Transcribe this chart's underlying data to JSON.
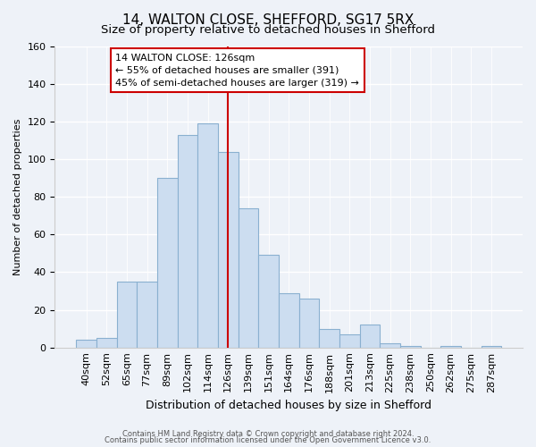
{
  "title1": "14, WALTON CLOSE, SHEFFORD, SG17 5RX",
  "title2": "Size of property relative to detached houses in Shefford",
  "xlabel": "Distribution of detached houses by size in Shefford",
  "ylabel": "Number of detached properties",
  "bar_labels": [
    "40sqm",
    "52sqm",
    "65sqm",
    "77sqm",
    "89sqm",
    "102sqm",
    "114sqm",
    "126sqm",
    "139sqm",
    "151sqm",
    "164sqm",
    "176sqm",
    "188sqm",
    "201sqm",
    "213sqm",
    "225sqm",
    "238sqm",
    "250sqm",
    "262sqm",
    "275sqm",
    "287sqm"
  ],
  "bar_values": [
    4,
    5,
    35,
    35,
    90,
    113,
    119,
    104,
    74,
    49,
    29,
    26,
    10,
    7,
    12,
    2,
    1,
    0,
    1,
    0,
    1
  ],
  "bar_color": "#ccddf0",
  "bar_edge_color": "#8ab0d0",
  "vline_x": 7,
  "vline_color": "#cc0000",
  "annotation_title": "14 WALTON CLOSE: 126sqm",
  "annotation_line1": "← 55% of detached houses are smaller (391)",
  "annotation_line2": "45% of semi-detached houses are larger (319) →",
  "annotation_box_edge": "#cc0000",
  "ylim": [
    0,
    160
  ],
  "yticks": [
    0,
    20,
    40,
    60,
    80,
    100,
    120,
    140,
    160
  ],
  "footnote1": "Contains HM Land Registry data © Crown copyright and database right 2024.",
  "footnote2": "Contains public sector information licensed under the Open Government Licence v3.0.",
  "bg_color": "#eef2f8",
  "plot_bg_color": "#eef2f8",
  "title_fontsize": 11,
  "subtitle_fontsize": 9.5,
  "xlabel_fontsize": 9,
  "ylabel_fontsize": 8,
  "tick_fontsize": 8,
  "annot_fontsize": 8,
  "footnote_fontsize": 6
}
